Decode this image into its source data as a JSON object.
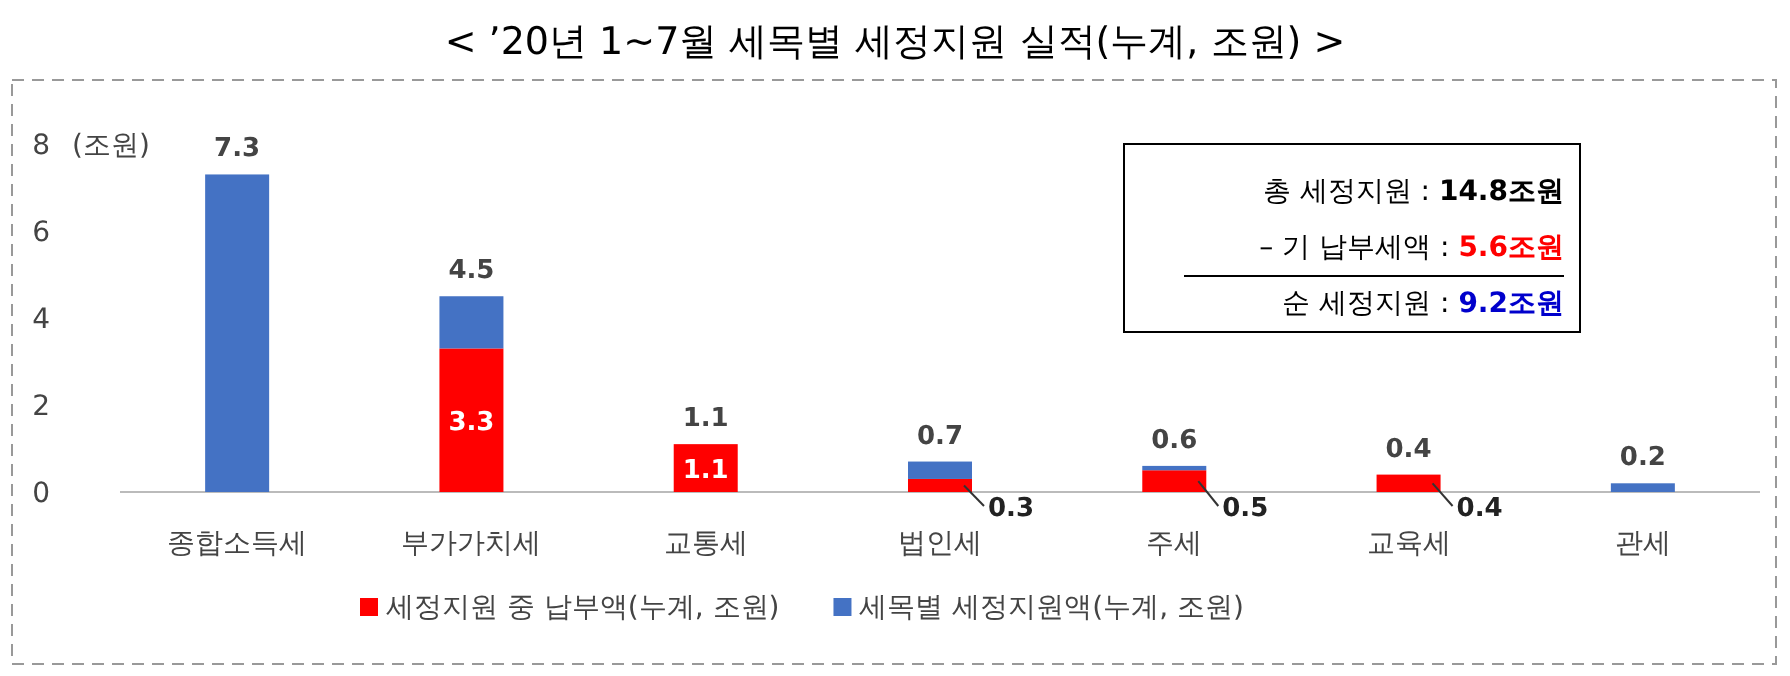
{
  "chart_data": {
    "type": "bar",
    "title": "< ’20년 1~7월 세목별 세정지원 실적(누계, 조원) >",
    "ylabel": "(조원)",
    "categories": [
      "종합소득세",
      "부가가치세",
      "교통세",
      "법인세",
      "주세",
      "교육세",
      "관세"
    ],
    "stacked": true,
    "ylim": [
      0,
      8
    ],
    "yticks": [
      0,
      2,
      4,
      6,
      8
    ],
    "legend": "bottom",
    "grid": false,
    "series": [
      {
        "name": "세정지원 중 납부액(누계, 조원)",
        "color": "#ff0000",
        "values": [
          null,
          3.3,
          1.1,
          0.3,
          0.5,
          0.4,
          null
        ],
        "value_labels": [
          null,
          "3.3",
          "1.1",
          "0.3",
          "0.5",
          "0.4",
          null
        ]
      },
      {
        "name": "세목별 세정지원액(누계, 조원)",
        "color": "#4472c4",
        "values": [
          7.3,
          1.2,
          null,
          0.4,
          0.1,
          null,
          0.2
        ]
      }
    ],
    "totals": [
      "7.3",
      "4.5",
      "1.1",
      "0.7",
      "0.6",
      "0.4",
      "0.2"
    ],
    "annotations": [
      "총 세정지원 : **14.8조원**",
      "– 기 납부세액 : **5.6조원**",
      "순 세정지원 : **9.2조원**"
    ]
  }
}
